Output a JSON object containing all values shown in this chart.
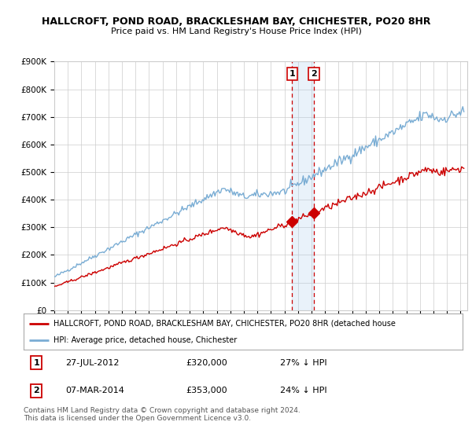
{
  "title1": "HALLCROFT, POND ROAD, BRACKLESHAM BAY, CHICHESTER, PO20 8HR",
  "title2": "Price paid vs. HM Land Registry's House Price Index (HPI)",
  "ylabel_ticks": [
    "£0",
    "£100K",
    "£200K",
    "£300K",
    "£400K",
    "£500K",
    "£600K",
    "£700K",
    "£800K",
    "£900K"
  ],
  "ylim": [
    0,
    900000
  ],
  "xlim_start": 1995.0,
  "xlim_end": 2025.5,
  "sale1_date": 2012.57,
  "sale1_price": 320000,
  "sale1_label": "1",
  "sale2_date": 2014.17,
  "sale2_price": 353000,
  "sale2_label": "2",
  "legend_red_label": "HALLCROFT, POND ROAD, BRACKLESHAM BAY, CHICHESTER, PO20 8HR (detached house",
  "legend_blue_label": "HPI: Average price, detached house, Chichester",
  "footnote": "Contains HM Land Registry data © Crown copyright and database right 2024.\nThis data is licensed under the Open Government Licence v3.0.",
  "red_color": "#cc0000",
  "blue_color": "#7aadd4",
  "highlight_color": "#ddeeff",
  "vline_color": "#cc0000",
  "grid_color": "#cccccc",
  "background_color": "#ffffff"
}
